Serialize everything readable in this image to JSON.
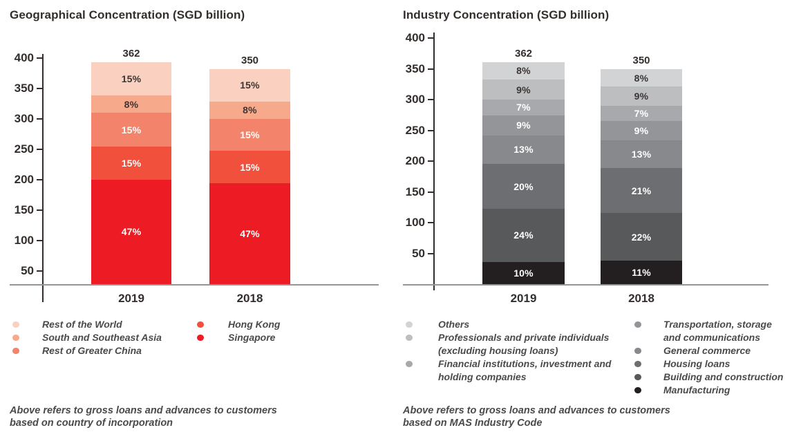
{
  "page": {
    "background": "#ffffff"
  },
  "chart_data": [
    {
      "type": "bar",
      "subtype": "stacked-percent",
      "title": "Geographical Concentration (SGD billion)",
      "categories": [
        "2019",
        "2018"
      ],
      "totals": [
        362,
        350
      ],
      "y_ticks": [
        400,
        350,
        300,
        250,
        200,
        150,
        100,
        50
      ],
      "ylim": [
        0,
        400
      ],
      "value_suffix": "%",
      "grid": "off",
      "legend_position": "bottom",
      "series": [
        {
          "name": "Rest of the World",
          "color": "#fad1c0",
          "label_color": "#3b3533",
          "values": [
            15,
            15
          ]
        },
        {
          "name": "South and Southeast Asia",
          "color": "#f7a98c",
          "label_color": "#3b3533",
          "values": [
            8,
            8
          ]
        },
        {
          "name": "Rest of Greater China",
          "color": "#f3846b",
          "label_color": "#ffffff",
          "values": [
            15,
            15
          ]
        },
        {
          "name": "Hong Kong",
          "color": "#f0503c",
          "label_color": "#ffffff",
          "values": [
            15,
            15
          ]
        },
        {
          "name": "Singapore",
          "color": "#ed1c24",
          "label_color": "#ffffff",
          "values": [
            47,
            47
          ]
        }
      ],
      "legend_columns": [
        [
          0,
          1,
          2
        ],
        [
          3,
          4
        ]
      ],
      "footnote": "Above refers to gross loans and advances to customers based on country of incorporation"
    },
    {
      "type": "bar",
      "subtype": "stacked-percent",
      "title": "Industry Concentration (SGD billion)",
      "categories": [
        "2019",
        "2018"
      ],
      "totals": [
        362,
        350
      ],
      "y_ticks": [
        400,
        350,
        300,
        250,
        200,
        150,
        100,
        50
      ],
      "ylim": [
        0,
        400
      ],
      "value_suffix": "%",
      "grid": "off",
      "legend_position": "bottom",
      "series": [
        {
          "name": "Others",
          "color": "#d1d3d4",
          "label_color": "#3b3533",
          "values": [
            8,
            8
          ]
        },
        {
          "name": "Professionals and private individuals (excluding housing loans)",
          "color": "#bcbec0",
          "label_color": "#3b3533",
          "values": [
            9,
            9
          ]
        },
        {
          "name": "Financial institutions, investment and holding companies",
          "color": "#a7a9ac",
          "label_color": "#ffffff",
          "values": [
            7,
            7
          ]
        },
        {
          "name": "Transportation, storage and communications",
          "color": "#939598",
          "label_color": "#ffffff",
          "values": [
            9,
            9
          ]
        },
        {
          "name": "General commerce",
          "color": "#88898c",
          "label_color": "#ffffff",
          "values": [
            13,
            13
          ]
        },
        {
          "name": "Housing loans",
          "color": "#6d6e71",
          "label_color": "#ffffff",
          "values": [
            20,
            21
          ]
        },
        {
          "name": "Building and construction",
          "color": "#58595b",
          "label_color": "#ffffff",
          "values": [
            24,
            22
          ]
        },
        {
          "name": "Manufacturing",
          "color": "#231f20",
          "label_color": "#ffffff",
          "values": [
            10,
            11
          ]
        }
      ],
      "legend_columns": [
        [
          0,
          1,
          2
        ],
        [
          3,
          4,
          5,
          6,
          7
        ]
      ],
      "footnote": "Above refers to gross loans and advances to customers based on MAS Industry Code"
    }
  ]
}
